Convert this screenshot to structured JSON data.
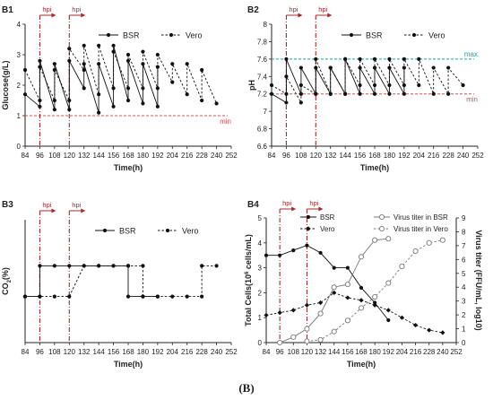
{
  "figure": {
    "caption": "(B)"
  },
  "chart_data": [
    {
      "panel": "B1",
      "type": "line",
      "xlabel": "Time(h)",
      "ylabel": "Glucose(g/L)",
      "xlim": [
        84,
        252
      ],
      "xticks": [
        84,
        96,
        108,
        120,
        132,
        144,
        156,
        168,
        180,
        192,
        204,
        216,
        228,
        240,
        252
      ],
      "ylim": [
        0,
        4
      ],
      "yticks": [
        0,
        1,
        2,
        3,
        4
      ],
      "grid": false,
      "legend": "top-center",
      "annotations": [
        {
          "text": "hpi",
          "x": 96
        },
        {
          "text": "hpi",
          "x": 120
        }
      ],
      "reference_lines": [
        {
          "label": "min",
          "y": 1.0,
          "color": "#d9534f"
        }
      ],
      "series": [
        {
          "name": "BSR",
          "style": "solid",
          "x": [
            84,
            96,
            96,
            108,
            108,
            120,
            120,
            132,
            132,
            144,
            144,
            156,
            156,
            168,
            168,
            180,
            180,
            192,
            192
          ],
          "y": [
            1.7,
            1.3,
            2.8,
            1.2,
            2.7,
            1.2,
            2.8,
            1.9,
            2.7,
            1.1,
            2.7,
            1.3,
            3.3,
            1.5,
            2.8,
            1.4,
            2.7,
            1.3,
            2.6
          ]
        },
        {
          "name": "Vero",
          "style": "dashed",
          "x": [
            84,
            96,
            96,
            108,
            108,
            120,
            120,
            132,
            132,
            144,
            144,
            156,
            156,
            168,
            168,
            180,
            180,
            192,
            192,
            204,
            204,
            216,
            216,
            228,
            228,
            240
          ],
          "y": [
            2.5,
            1.5,
            2.6,
            1.5,
            2.5,
            1.5,
            3.2,
            2.5,
            3.3,
            1.7,
            3.3,
            1.9,
            3.1,
            1.9,
            3.0,
            1.9,
            3.1,
            1.9,
            3.0,
            2.1,
            2.7,
            1.7,
            2.7,
            1.5,
            2.5,
            1.4
          ]
        }
      ]
    },
    {
      "panel": "B2",
      "type": "line",
      "xlabel": "Time(h)",
      "ylabel": "pH",
      "xlim": [
        84,
        252
      ],
      "xticks": [
        84,
        96,
        108,
        120,
        132,
        144,
        156,
        168,
        180,
        192,
        204,
        216,
        228,
        240,
        252
      ],
      "ylim": [
        6.6,
        8.0
      ],
      "yticks": [
        6.6,
        6.8,
        7.0,
        7.2,
        7.4,
        7.6,
        7.8,
        8.0
      ],
      "grid": false,
      "legend": "top-center",
      "annotations": [
        {
          "text": "hpi",
          "x": 96
        },
        {
          "text": "hpi",
          "x": 120
        }
      ],
      "reference_lines": [
        {
          "label": "max",
          "y": 7.6,
          "color": "#1aa39a"
        },
        {
          "label": "min",
          "y": 7.2,
          "color": "#d9534f"
        }
      ],
      "series": [
        {
          "name": "BSR",
          "style": "solid",
          "x": [
            84,
            96,
            96,
            108,
            108,
            120,
            120,
            132,
            132,
            144,
            144,
            156,
            156,
            168,
            168,
            180,
            180,
            192,
            192
          ],
          "y": [
            7.2,
            7.1,
            7.6,
            7.2,
            7.5,
            7.2,
            7.5,
            7.2,
            7.5,
            7.2,
            7.6,
            7.2,
            7.5,
            7.2,
            7.5,
            7.2,
            7.5,
            7.2,
            7.5
          ]
        },
        {
          "name": "Vero",
          "style": "dashed",
          "x": [
            84,
            96,
            96,
            108,
            108,
            120,
            120,
            132,
            132,
            144,
            144,
            156,
            156,
            168,
            168,
            180,
            180,
            192,
            192,
            204,
            204,
            216,
            216,
            228,
            228,
            240
          ],
          "y": [
            7.3,
            7.2,
            7.4,
            7.1,
            7.3,
            7.2,
            7.6,
            7.2,
            7.5,
            7.2,
            7.6,
            7.3,
            7.6,
            7.3,
            7.6,
            7.3,
            7.6,
            7.3,
            7.6,
            7.3,
            7.6,
            7.2,
            7.5,
            7.2,
            7.5,
            7.3
          ]
        }
      ]
    },
    {
      "panel": "B3",
      "type": "line",
      "xlabel": "Time(h)",
      "ylabel": "CO2(%)",
      "ylabel_main": "CO",
      "ylabel_sub": "2",
      "ylabel_tail": "(%)",
      "xlim": [
        84,
        252
      ],
      "xticks": [
        84,
        96,
        108,
        120,
        132,
        144,
        156,
        168,
        180,
        192,
        204,
        216,
        228,
        240,
        252
      ],
      "ylim": [
        0,
        8
      ],
      "yticks": [],
      "grid": false,
      "legend": "top-center",
      "annotations": [
        {
          "text": "hpi",
          "x": 96
        },
        {
          "text": "hpi",
          "x": 120
        }
      ],
      "series": [
        {
          "name": "BSR",
          "style": "solid",
          "x": [
            84,
            96,
            96,
            108,
            120,
            132,
            144,
            156,
            168,
            168,
            180,
            192
          ],
          "y": [
            3,
            3,
            5,
            5,
            5,
            5,
            5,
            5,
            5,
            3,
            3,
            3
          ]
        },
        {
          "name": "Vero",
          "style": "dashed",
          "x": [
            84,
            96,
            108,
            120,
            132,
            144,
            156,
            168,
            180,
            180,
            192,
            204,
            216,
            228,
            228,
            240
          ],
          "y": [
            3,
            3,
            3,
            3,
            5,
            5,
            5,
            5,
            5,
            3,
            3,
            3,
            3,
            3,
            5,
            5
          ]
        }
      ]
    },
    {
      "panel": "B4",
      "type": "line",
      "xlabel": "Time(h)",
      "ylabel": "Total Cells(10⁶ cells/mL)",
      "ylabel_main": "Total Cells(10",
      "ylabel_sup": "6",
      "ylabel_tail": " cells/mL)",
      "y2label": "Virus titer  (FFU/mL, log10)",
      "xlim": [
        84,
        252
      ],
      "xticks": [
        84,
        96,
        108,
        120,
        132,
        144,
        156,
        168,
        180,
        192,
        204,
        216,
        228,
        240,
        252
      ],
      "ylim": [
        0,
        5
      ],
      "yticks": [
        0,
        1,
        2,
        3,
        4,
        5
      ],
      "y2lim": [
        0,
        9
      ],
      "y2ticks": [
        0,
        1,
        2,
        3,
        4,
        5,
        6,
        7,
        8,
        9
      ],
      "grid": false,
      "legend": "top",
      "annotations": [
        {
          "text": "hpi",
          "x": 96
        },
        {
          "text": "hpi",
          "x": 120
        }
      ],
      "series": [
        {
          "name": "BSR",
          "style": "solid",
          "marker": "filled-circle",
          "axis": "left",
          "x": [
            84,
            96,
            108,
            120,
            132,
            144,
            156,
            168,
            180,
            192
          ],
          "y": [
            3.5,
            3.5,
            3.7,
            3.9,
            3.6,
            3.0,
            3.0,
            2.2,
            1.6,
            0.9
          ]
        },
        {
          "name": "Vero",
          "style": "dashed",
          "marker": "filled-diamond",
          "axis": "left",
          "x": [
            84,
            96,
            108,
            120,
            132,
            144,
            156,
            168,
            180,
            192,
            204,
            216,
            228,
            240
          ],
          "y": [
            1.1,
            1.2,
            1.3,
            1.5,
            1.6,
            2.0,
            1.8,
            1.7,
            1.5,
            1.3,
            1.0,
            0.7,
            0.5,
            0.4
          ]
        },
        {
          "name": "Virus titer in BSR",
          "style": "solid",
          "marker": "open-circle",
          "axis": "right",
          "x": [
            96,
            108,
            120,
            132,
            144,
            156,
            168,
            180,
            192
          ],
          "y": [
            0,
            0.4,
            1.0,
            2.1,
            4.0,
            4.2,
            6.2,
            7.4,
            7.5
          ]
        },
        {
          "name": "Virus titer in Vero",
          "style": "dashed",
          "marker": "open-circle",
          "axis": "right",
          "x": [
            120,
            132,
            144,
            156,
            168,
            180,
            192,
            204,
            216,
            228,
            240
          ],
          "y": [
            0.1,
            0.2,
            0.8,
            1.6,
            2.5,
            3.3,
            4.3,
            5.5,
            6.6,
            7.2,
            7.4
          ]
        }
      ]
    }
  ]
}
